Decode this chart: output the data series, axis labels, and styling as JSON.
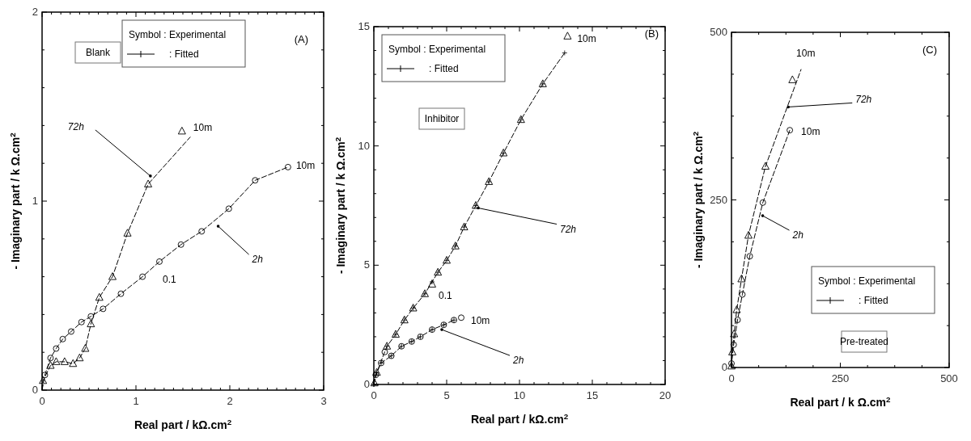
{
  "chart_data": [
    {
      "type": "scatter",
      "xlabel": "Real part / kΩ.cm$^{2}$",
      "ylabel": "- Imaginary part / k Ω.cm$^{2}$",
      "xlim": [
        0,
        3
      ],
      "ylim": [
        0,
        2
      ],
      "xticks": [
        0,
        {
          "value": 0.1,
          "label": null
        },
        {
          "value": 0.2,
          "label": null
        },
        {
          "value": 0.3,
          "label": null
        },
        {
          "value": 0.4,
          "label": null
        },
        {
          "value": 0.5,
          "label": null
        },
        {
          "value": 0.6,
          "label": null
        },
        {
          "value": 0.7,
          "label": null
        },
        {
          "value": 0.8,
          "label": null
        },
        {
          "value": 0.9,
          "label": null
        },
        1,
        {
          "value": 1.1,
          "label": null
        },
        {
          "value": 1.2,
          "label": null
        },
        {
          "value": 1.3,
          "label": null
        },
        {
          "value": 1.4,
          "label": null
        },
        {
          "value": 1.5,
          "label": null
        },
        {
          "value": 1.6,
          "label": null
        },
        {
          "value": 1.7,
          "label": null
        },
        {
          "value": 1.8,
          "label": null
        },
        {
          "value": 1.9,
          "label": null
        },
        2,
        {
          "value": 2.1,
          "label": null
        },
        {
          "value": 2.2,
          "label": null
        },
        {
          "value": 2.3,
          "label": null
        },
        {
          "value": 2.4,
          "label": null
        },
        {
          "value": 2.5,
          "label": null
        },
        {
          "value": 2.6,
          "label": null
        },
        {
          "value": 2.7,
          "label": null
        },
        {
          "value": 2.8,
          "label": null
        },
        {
          "value": 2.9,
          "label": null
        },
        3
      ],
      "yticks": [
        0,
        {
          "value": 0.2,
          "label": null
        },
        {
          "value": 0.4,
          "label": null
        },
        {
          "value": 0.6,
          "label": null
        },
        {
          "value": 0.8,
          "label": null
        },
        1,
        {
          "value": 1.2,
          "label": null
        },
        {
          "value": 1.4,
          "label": null
        },
        {
          "value": 1.6,
          "label": null
        },
        {
          "value": 1.8,
          "label": null
        },
        2
      ],
      "series": [
        {
          "type": "line",
          "marker": "none",
          "line_style": "dashed",
          "color": "#000000",
          "x": [
            0,
            0.03,
            0.09,
            0.15,
            0.22,
            0.31,
            0.42,
            0.52,
            0.65,
            0.84,
            1.07,
            1.25,
            1.48,
            1.7,
            1.99,
            2.27,
            2.62
          ],
          "values": [
            0,
            0.08,
            0.17,
            0.22,
            0.27,
            0.31,
            0.36,
            0.39,
            0.43,
            0.51,
            0.6,
            0.68,
            0.77,
            0.84,
            0.96,
            1.11,
            1.18
          ]
        },
        {
          "type": "line",
          "marker": "none",
          "line_style": "dashed",
          "color": "#000000",
          "x": [
            0,
            0.01,
            0.09,
            0.15,
            0.24,
            0.33,
            0.4,
            0.46,
            0.52,
            0.61,
            0.75,
            0.91,
            1.13,
            1.58
          ],
          "values": [
            0,
            0.05,
            0.13,
            0.15,
            0.15,
            0.14,
            0.17,
            0.22,
            0.35,
            0.49,
            0.6,
            0.83,
            1.09,
            1.34
          ]
        },
        {
          "marker": "circle",
          "color": "#000000",
          "x": [
            0.03,
            0.09,
            0.15,
            0.22,
            0.31,
            0.42,
            0.52,
            0.65,
            0.84,
            1.07,
            1.25,
            1.48,
            1.7,
            1.99,
            2.27,
            2.62
          ],
          "values": [
            0.08,
            0.17,
            0.22,
            0.27,
            0.31,
            0.36,
            0.39,
            0.43,
            0.51,
            0.6,
            0.68,
            0.77,
            0.84,
            0.96,
            1.11,
            1.18
          ]
        },
        {
          "marker": "triangle",
          "color": "#000000",
          "x": [
            0.01,
            0.09,
            0.15,
            0.24,
            0.33,
            0.4,
            0.46,
            0.52,
            0.61,
            0.75,
            0.91,
            1.13,
            1.49
          ],
          "values": [
            0.05,
            0.13,
            0.15,
            0.15,
            0.14,
            0.17,
            0.22,
            0.35,
            0.49,
            0.6,
            0.83,
            1.09,
            1.37
          ]
        }
      ],
      "annotations": [
        "Symbol : Experimental",
        ": Fitted",
        "Blank",
        "(A)",
        {
          "text": "72h",
          "x": 1.18,
          "y": 1.12
        },
        {
          "text": "2h",
          "x": 1.85,
          "y": 0.88
        },
        {
          "text": "10m",
          "x": 1.49,
          "y": 1.37
        },
        {
          "text": "10m",
          "x": 2.62,
          "y": 1.18
        },
        {
          "text": "0.1",
          "x": 1.25,
          "y": 0.68
        }
      ]
    },
    {
      "type": "scatter",
      "xlabel": "Real part / kΩ.cm$^{2}$",
      "ylabel": "- Imaginary part / k Ω.cm$^{2}$",
      "xlim": [
        0,
        20
      ],
      "ylim": [
        0,
        15
      ],
      "xticks": [
        0,
        {
          "value": 1,
          "label": null
        },
        {
          "value": 2,
          "label": null
        },
        {
          "value": 3,
          "label": null
        },
        {
          "value": 4,
          "label": null
        },
        5,
        {
          "value": 6,
          "label": null
        },
        {
          "value": 7,
          "label": null
        },
        {
          "value": 8,
          "label": null
        },
        {
          "value": 9,
          "label": null
        },
        10,
        {
          "value": 11,
          "label": null
        },
        {
          "value": 12,
          "label": null
        },
        {
          "value": 13,
          "label": null
        },
        {
          "value": 14,
          "label": null
        },
        15,
        {
          "value": 16,
          "label": null
        },
        {
          "value": 17,
          "label": null
        },
        {
          "value": 18,
          "label": null
        },
        {
          "value": 19,
          "label": null
        },
        20
      ],
      "yticks": [
        0,
        {
          "value": 1,
          "label": null
        },
        {
          "value": 2,
          "label": null
        },
        {
          "value": 3,
          "label": null
        },
        {
          "value": 4,
          "label": null
        },
        5,
        {
          "value": 6,
          "label": null
        },
        {
          "value": 7,
          "label": null
        },
        {
          "value": 8,
          "label": null
        },
        {
          "value": 9,
          "label": null
        },
        10,
        {
          "value": 11,
          "label": null
        },
        {
          "value": 12,
          "label": null
        },
        {
          "value": 13,
          "label": null
        },
        {
          "value": 14,
          "label": null
        },
        15
      ],
      "series": [
        {
          "type": "line",
          "marker": "cross",
          "line_style": "dashed",
          "color": "#000000",
          "x": [
            0,
            0.13,
            0.5,
            1.2,
            1.9,
            2.6,
            3.2,
            4.0,
            4.8,
            5.5
          ],
          "values": [
            0,
            0.4,
            0.9,
            1.2,
            1.6,
            1.8,
            2.0,
            2.3,
            2.5,
            2.7
          ]
        },
        {
          "type": "line",
          "marker": "cross",
          "line_style": "dashed",
          "color": "#000000",
          "x": [
            0,
            0.2,
            0.9,
            1.5,
            2.1,
            2.7,
            3.5,
            4.0,
            4.4,
            5.0,
            5.6,
            6.2,
            7.0,
            7.9,
            8.9,
            10.1,
            11.6,
            13.1
          ],
          "values": [
            0,
            0.5,
            1.6,
            2.1,
            2.7,
            3.2,
            3.8,
            4.3,
            4.7,
            5.2,
            5.8,
            6.6,
            7.5,
            8.5,
            9.7,
            11.1,
            12.6,
            13.9
          ]
        },
        {
          "marker": "circle",
          "color": "#000000",
          "x": [
            0.13,
            0.5,
            0.75,
            1.2,
            1.9,
            2.6,
            3.2,
            4.0,
            4.8,
            5.5,
            6.0
          ],
          "values": [
            0.4,
            0.9,
            1.36,
            1.2,
            1.6,
            1.8,
            2.0,
            2.3,
            2.5,
            2.7,
            2.8
          ]
        },
        {
          "marker": "triangle",
          "color": "#000000",
          "x": [
            0.04,
            0.2,
            0.9,
            1.5,
            2.1,
            2.7,
            3.5,
            4.0,
            4.4,
            5.0,
            5.6,
            6.2,
            7.0,
            7.9,
            8.9,
            10.1,
            11.6,
            13.3
          ],
          "values": [
            0.06,
            0.5,
            1.6,
            2.1,
            2.7,
            3.2,
            3.8,
            4.2,
            4.7,
            5.2,
            5.8,
            6.6,
            7.5,
            8.5,
            9.7,
            11.1,
            12.6,
            14.6
          ]
        }
      ],
      "annotations": [
        "Symbol : Experimental",
        ": Fitted",
        "Inhibitor",
        "(B)",
        {
          "text": "72h",
          "x": 7.0,
          "y": 7.5
        },
        {
          "text": "2h",
          "x": 4.5,
          "y": 2.4
        },
        {
          "text": "10m",
          "x": 13.3,
          "y": 14.6
        },
        {
          "text": "10m",
          "x": 6.0,
          "y": 2.8
        },
        {
          "text": "0.1",
          "x": 4.0,
          "y": 4.2
        }
      ]
    },
    {
      "type": "scatter",
      "xlabel": "Real part / k Ω.cm$^{2}$",
      "ylabel": "- Imaginary part / k Ω.cm$^{2}$",
      "xlim": [
        0,
        500
      ],
      "ylim": [
        0,
        500
      ],
      "xticks": [
        0,
        {
          "value": 62.5,
          "label": null
        },
        {
          "value": 125,
          "label": null
        },
        {
          "value": 187.5,
          "label": null
        },
        250,
        {
          "value": 312.5,
          "label": null
        },
        {
          "value": 375,
          "label": null
        },
        {
          "value": 437.5,
          "label": null
        },
        500
      ],
      "yticks": [
        0,
        {
          "value": 62.5,
          "label": null
        },
        {
          "value": 125,
          "label": null
        },
        {
          "value": 187.5,
          "label": null
        },
        250,
        {
          "value": 312.5,
          "label": null
        },
        {
          "value": 375,
          "label": null
        },
        {
          "value": 437.5,
          "label": null
        },
        500
      ],
      "series": [
        {
          "type": "line",
          "marker": "none",
          "line_style": "dashed",
          "color": "#000000",
          "x": [
            0,
            0,
            5,
            14,
            25,
            42,
            72,
            134
          ],
          "values": [
            0,
            6,
            34,
            71,
            109,
            166,
            246,
            354
          ]
        },
        {
          "type": "line",
          "marker": "none",
          "line_style": "dashed",
          "color": "#000000",
          "x": [
            0,
            0,
            2,
            6,
            12,
            23,
            39,
            78,
            160
          ],
          "values": [
            0,
            2,
            23,
            50,
            86,
            132,
            197,
            300,
            445
          ]
        },
        {
          "marker": "circle",
          "color": "#000000",
          "x": [
            0,
            5,
            14,
            25,
            42,
            72,
            134
          ],
          "values": [
            6,
            34,
            71,
            109,
            166,
            246,
            354
          ]
        },
        {
          "marker": "triangle",
          "color": "#000000",
          "x": [
            0,
            2,
            6,
            12,
            23,
            39,
            78,
            140
          ],
          "values": [
            2,
            23,
            50,
            86,
            132,
            197,
            300,
            429
          ]
        }
      ],
      "annotations": [
        "Symbol : Experimental",
        ": Fitted",
        "Pre-treated",
        "(C)",
        {
          "text": "72h",
          "x": 125,
          "y": 385
        },
        {
          "text": "2h",
          "x": 66,
          "y": 230
        },
        {
          "text": "10m",
          "x": 160,
          "y": 445
        },
        {
          "text": "10m",
          "x": 134,
          "y": 354
        }
      ]
    }
  ]
}
